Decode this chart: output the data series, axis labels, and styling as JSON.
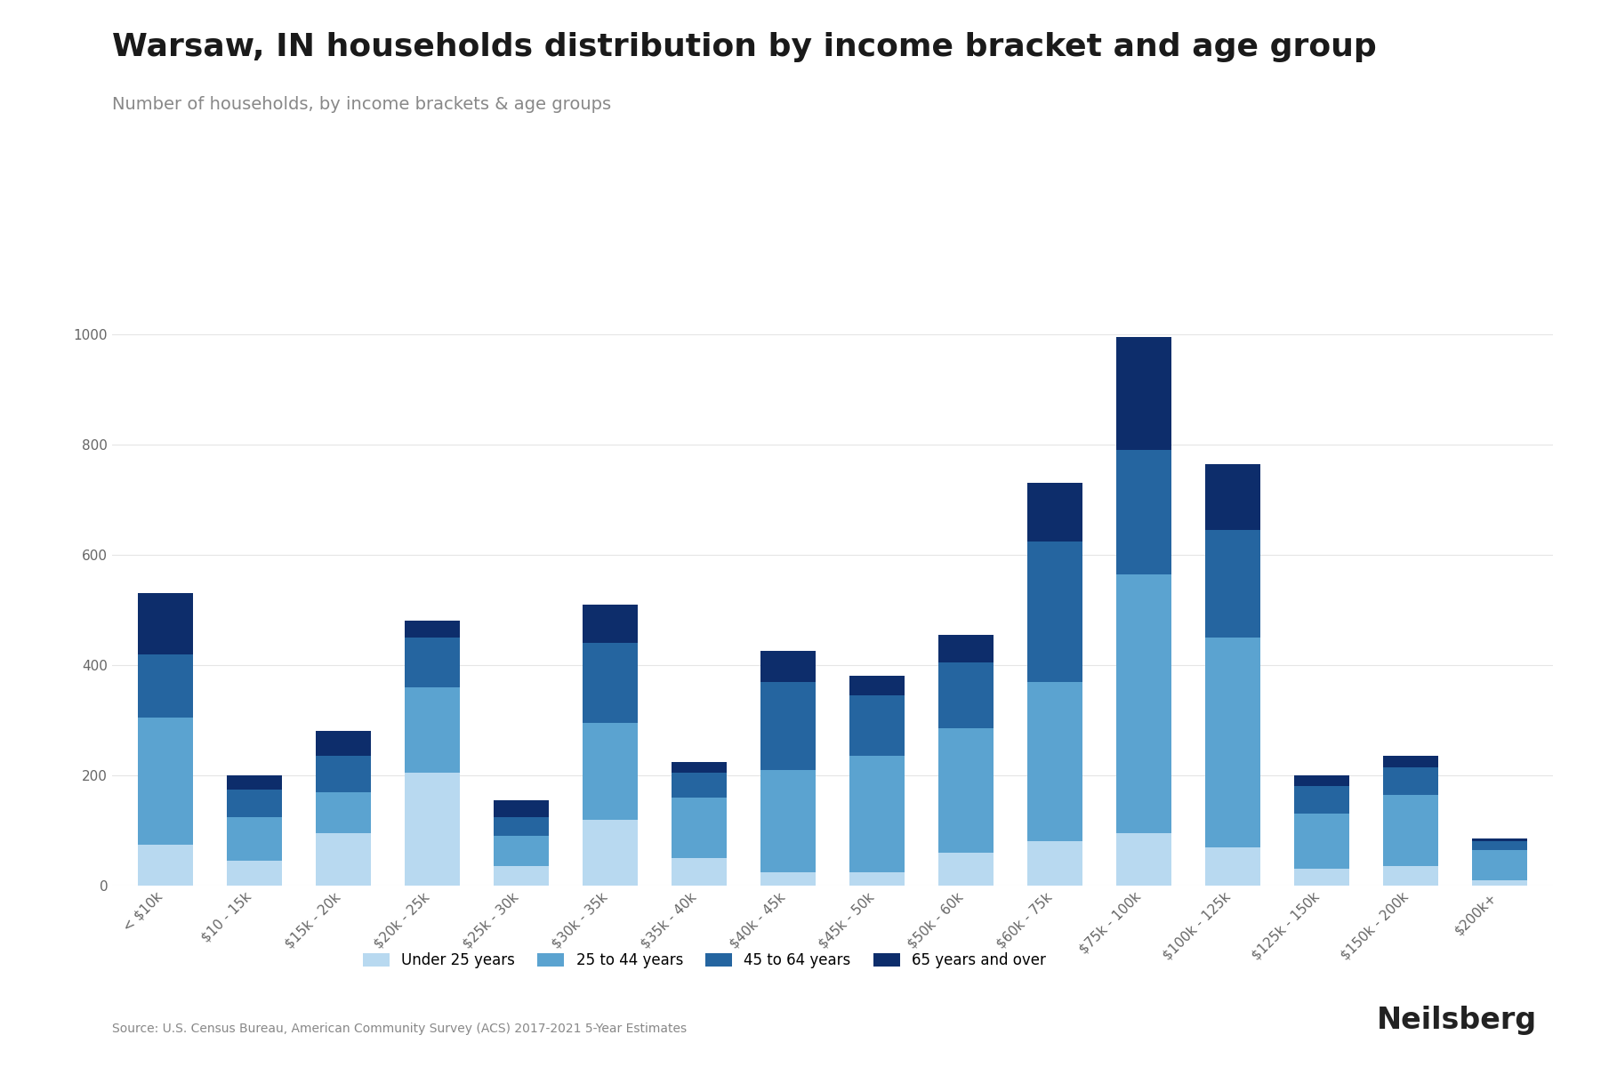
{
  "title": "Warsaw, IN households distribution by income bracket and age group",
  "subtitle": "Number of households, by income brackets & age groups",
  "source": "Source: U.S. Census Bureau, American Community Survey (ACS) 2017-2021 5-Year Estimates",
  "categories": [
    "< $10k",
    "$10 - 15k",
    "$15k - 20k",
    "$20k - 25k",
    "$25k - 30k",
    "$30k - 35k",
    "$35k - 40k",
    "$40k - 45k",
    "$45k - 50k",
    "$50k - 60k",
    "$60k - 75k",
    "$75k - 100k",
    "$100k - 125k",
    "$125k - 150k",
    "$150k - 200k",
    "$200k+"
  ],
  "age_groups": [
    "Under 25 years",
    "25 to 44 years",
    "45 to 64 years",
    "65 years and over"
  ],
  "colors": [
    "#b8d9f0",
    "#5ba3d0",
    "#2565a0",
    "#0d2d6b"
  ],
  "data": {
    "Under 25 years": [
      75,
      45,
      95,
      205,
      35,
      120,
      50,
      25,
      25,
      60,
      80,
      95,
      70,
      30,
      35,
      10
    ],
    "25 to 44 years": [
      230,
      80,
      75,
      155,
      55,
      175,
      110,
      185,
      210,
      225,
      290,
      470,
      380,
      100,
      130,
      55
    ],
    "45 to 64 years": [
      115,
      50,
      65,
      90,
      35,
      145,
      45,
      160,
      110,
      120,
      255,
      225,
      195,
      50,
      50,
      15
    ],
    "65 years and over": [
      110,
      25,
      45,
      30,
      30,
      70,
      20,
      55,
      35,
      50,
      105,
      205,
      120,
      20,
      20,
      5
    ]
  },
  "ylim": [
    0,
    1200
  ],
  "yticks": [
    0,
    200,
    400,
    600,
    800,
    1000
  ],
  "background_color": "#ffffff",
  "grid_color": "#e5e5e5",
  "title_fontsize": 26,
  "subtitle_fontsize": 14,
  "tick_fontsize": 11,
  "legend_fontsize": 12,
  "bar_width": 0.62
}
